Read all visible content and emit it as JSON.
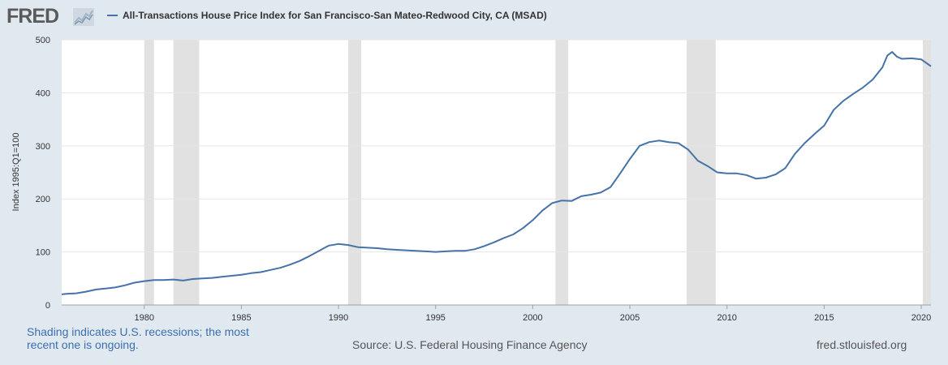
{
  "header": {
    "logo_text": "FRED",
    "logo_icon": "chart-line-icon",
    "title": "All-Transactions House Price Index for San Francisco-San Mateo-Redwood City, CA (MSAD)"
  },
  "footer": {
    "note": "Shading indicates U.S. recessions; the most recent one is ongoing.",
    "source": "Source: U.S. Federal Housing Finance Agency",
    "site": "fred.stlouisfed.org"
  },
  "colors": {
    "background": "#e1e9f0",
    "plot_background": "#ffffff",
    "series": "#4572a7",
    "recession": "#e1e1e1",
    "note_text": "#3c6fae"
  },
  "chart_data": {
    "type": "line",
    "title": "All-Transactions House Price Index for San Francisco-San Mateo-Redwood City, CA (MSAD)",
    "xlabel": "",
    "ylabel": "Index 1995:Q1=100",
    "xlim": [
      1975.75,
      2020.5
    ],
    "ylim": [
      0,
      500
    ],
    "x_ticks": [
      1980,
      1985,
      1990,
      1995,
      2000,
      2005,
      2010,
      2015,
      2020
    ],
    "y_ticks": [
      0,
      100,
      200,
      300,
      400,
      500
    ],
    "grid": "horizontal",
    "legend": "top-left",
    "recessions": [
      [
        1980.0,
        1980.5
      ],
      [
        1981.5,
        1982.83
      ],
      [
        1990.5,
        1991.17
      ],
      [
        2001.17,
        2001.83
      ],
      [
        2007.92,
        2009.42
      ],
      [
        2020.08,
        2020.5
      ]
    ],
    "series": [
      {
        "name": "All-Transactions House Price Index for San Francisco-San Mateo-Redwood City, CA (MSAD)",
        "x": [
          1975.75,
          1976,
          1976.5,
          1977,
          1977.5,
          1978,
          1978.5,
          1979,
          1979.5,
          1980,
          1980.5,
          1981,
          1981.5,
          1982,
          1982.5,
          1983,
          1983.5,
          1984,
          1984.5,
          1985,
          1985.5,
          1986,
          1986.5,
          1987,
          1987.5,
          1988,
          1988.5,
          1989,
          1989.5,
          1990,
          1990.5,
          1991,
          1991.5,
          1992,
          1992.5,
          1993,
          1993.5,
          1994,
          1994.5,
          1995,
          1995.5,
          1996,
          1996.5,
          1997,
          1997.5,
          1998,
          1998.5,
          1999,
          1999.5,
          2000,
          2000.5,
          2001,
          2001.5,
          2002,
          2002.5,
          2003,
          2003.5,
          2004,
          2004.5,
          2005,
          2005.5,
          2006,
          2006.5,
          2007,
          2007.5,
          2008,
          2008.5,
          2009,
          2009.5,
          2010,
          2010.5,
          2011,
          2011.5,
          2012,
          2012.5,
          2013,
          2013.5,
          2014,
          2014.5,
          2015,
          2015.5,
          2016,
          2016.5,
          2017,
          2017.5,
          2018,
          2018.25,
          2018.5,
          2018.75,
          2019,
          2019.5,
          2020,
          2020.5
        ],
        "values": [
          20,
          21,
          22,
          25,
          29,
          31,
          33,
          37,
          42,
          45,
          47,
          47,
          48,
          46,
          49,
          50,
          51,
          53,
          55,
          57,
          60,
          62,
          66,
          70,
          76,
          83,
          92,
          102,
          112,
          115,
          113,
          109,
          108,
          107,
          105,
          104,
          103,
          102,
          101,
          100,
          101,
          102,
          102,
          105,
          111,
          118,
          126,
          133,
          145,
          160,
          178,
          192,
          197,
          196,
          205,
          208,
          212,
          222,
          248,
          275,
          300,
          307,
          310,
          307,
          305,
          293,
          272,
          262,
          250,
          248,
          248,
          245,
          238,
          240,
          246,
          258,
          285,
          305,
          322,
          338,
          368,
          385,
          398,
          410,
          425,
          448,
          470,
          477,
          468,
          464,
          465,
          463,
          450
        ]
      }
    ]
  }
}
